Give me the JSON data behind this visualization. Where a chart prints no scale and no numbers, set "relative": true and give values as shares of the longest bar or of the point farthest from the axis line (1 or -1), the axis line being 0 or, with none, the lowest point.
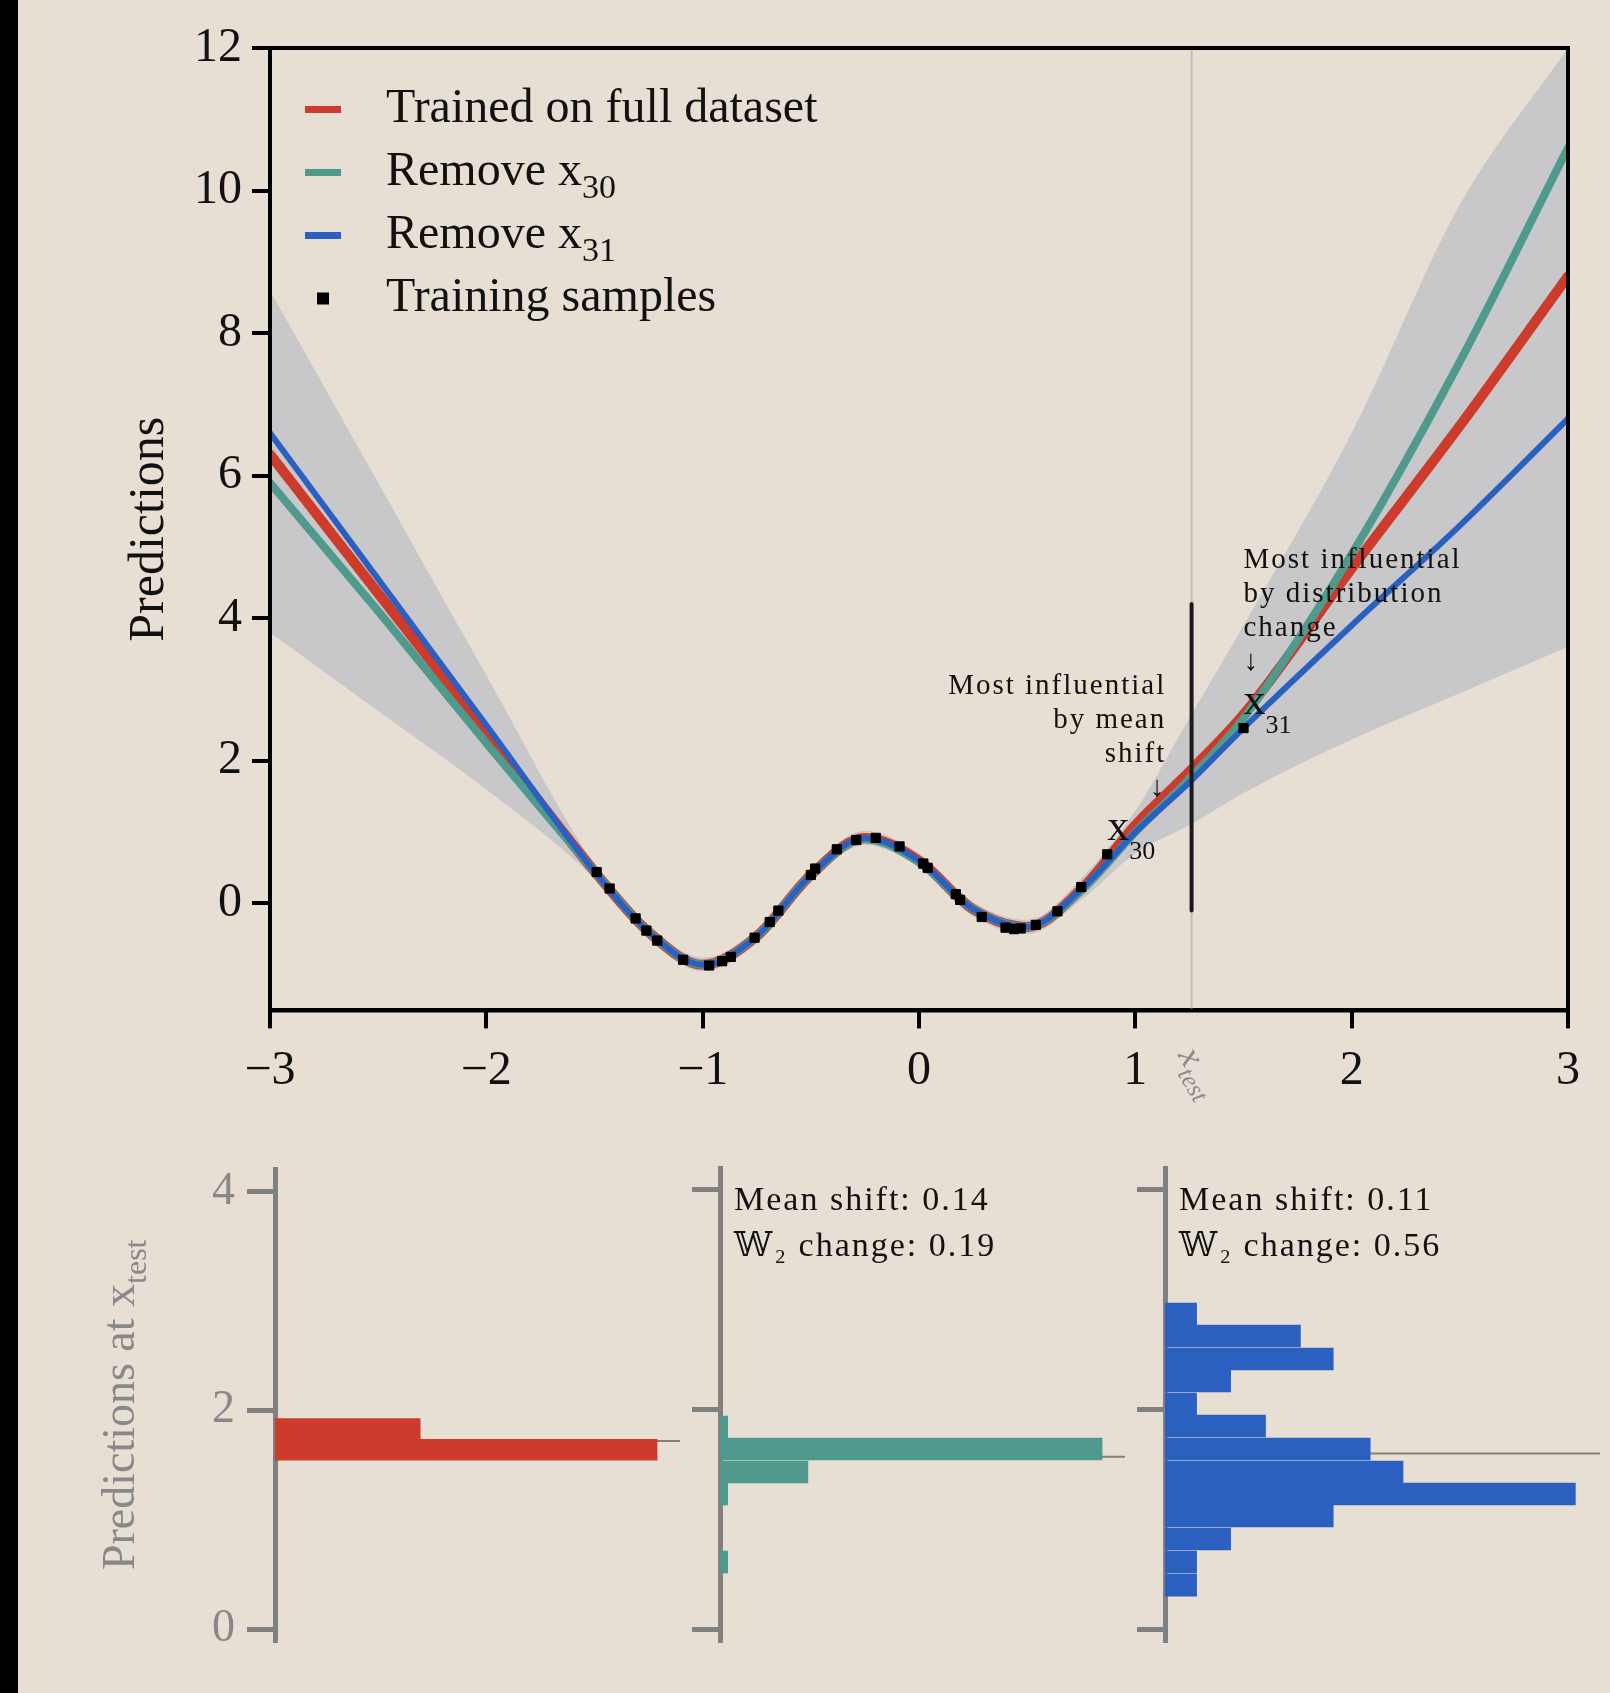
{
  "chart_data": [
    {
      "type": "line",
      "ylabel": "Predictions",
      "xlim": [
        -3,
        3
      ],
      "xticks": [
        -3,
        -2,
        -1,
        0,
        1,
        2,
        3
      ],
      "ylim": [
        -1.5,
        12
      ],
      "yticks": [
        0,
        2,
        4,
        6,
        8,
        10,
        12
      ],
      "legend": "top left",
      "grid": false,
      "series": [
        {
          "name": "Trained on full dataset",
          "color": "#cc3b2c",
          "x": [
            -3,
            -2.5,
            -2,
            -1.5,
            -1.25,
            -1,
            -0.75,
            -0.5,
            -0.25,
            0,
            0.25,
            0.5,
            0.75,
            1,
            1.25,
            1.5,
            2,
            2.5,
            3
          ],
          "values": [
            6.3,
            4.35,
            2.4,
            0.45,
            -0.4,
            -0.86,
            -0.46,
            0.4,
            0.92,
            0.6,
            -0.08,
            -0.33,
            0.2,
            1.1,
            1.85,
            2.65,
            4.7,
            6.7,
            8.8
          ]
        },
        {
          "name": "Remove x$_{30}$",
          "color": "#4f9a8c",
          "x": [
            -3,
            -2.5,
            -2,
            -1.5,
            -1.25,
            -1,
            -0.75,
            -0.5,
            -0.25,
            0,
            0.25,
            0.5,
            0.75,
            1,
            1.25,
            1.5,
            2,
            2.5,
            3
          ],
          "values": [
            5.9,
            4.1,
            2.25,
            0.45,
            -0.4,
            -0.86,
            -0.46,
            0.4,
            0.9,
            0.58,
            -0.08,
            -0.33,
            0.18,
            1.0,
            1.75,
            2.6,
            4.9,
            7.6,
            10.6
          ]
        },
        {
          "name": "Remove x$_{31}$",
          "color": "#2c60c0",
          "x": [
            -3,
            -2.5,
            -2,
            -1.5,
            -1.25,
            -1,
            -0.75,
            -0.5,
            -0.25,
            0,
            0.25,
            0.5,
            0.75,
            1,
            1.25,
            1.5,
            2,
            2.5,
            3
          ],
          "values": [
            6.6,
            4.55,
            2.5,
            0.45,
            -0.4,
            -0.86,
            -0.46,
            0.4,
            0.92,
            0.6,
            -0.08,
            -0.33,
            0.2,
            1.0,
            1.7,
            2.46,
            3.9,
            5.3,
            6.8
          ],
          "lower": [
            3.8,
            2.7,
            1.6,
            0.35,
            -0.5,
            -0.95,
            -0.56,
            0.3,
            0.82,
            0.5,
            -0.18,
            -0.43,
            0.05,
            0.7,
            1.1,
            1.55,
            2.3,
            2.95,
            3.6
          ],
          "upper": [
            8.6,
            5.9,
            3.2,
            0.55,
            -0.3,
            -0.76,
            -0.36,
            0.5,
            1.02,
            0.7,
            0.02,
            -0.23,
            0.35,
            1.3,
            2.6,
            3.9,
            6.6,
            9.8,
            12
          ]
        },
        {
          "name": "Training samples",
          "type": "scatter",
          "marker": "square",
          "color": "#000000",
          "x": [
            -1.49,
            -1.43,
            -1.31,
            -1.26,
            -1.21,
            -1.09,
            -0.97,
            -0.91,
            -0.87,
            -0.76,
            -0.69,
            -0.65,
            -0.5,
            -0.48,
            -0.38,
            -0.29,
            -0.2,
            -0.09,
            0.02,
            0.04,
            0.17,
            0.19,
            0.29,
            0.4,
            0.44,
            0.47,
            0.54,
            0.64,
            0.75,
            0.87,
            1.5
          ],
          "values": [
            0.44,
            0.21,
            -0.21,
            -0.38,
            -0.52,
            -0.79,
            -0.87,
            -0.81,
            -0.75,
            -0.48,
            -0.26,
            -0.1,
            0.4,
            0.49,
            0.76,
            0.89,
            0.92,
            0.8,
            0.56,
            0.5,
            0.13,
            0.05,
            -0.19,
            -0.34,
            -0.36,
            -0.35,
            -0.3,
            -0.11,
            0.23,
            0.69,
            2.46
          ]
        },
        {
          "type": "line",
          "color": "#1a1a1a",
          "x": [
            1.26,
            1.26
          ],
          "values": [
            -0.1,
            4.2
          ]
        }
      ],
      "ref_lines": [
        {
          "axis": "x",
          "value": 1.26,
          "label": "x$_{test}$",
          "color": "#c4beb6"
        }
      ],
      "annotations": [
        {
          "text": "Most influential\nby mean\nshift\n↓\nx$_{30}$",
          "x": 0.87,
          "y": 0.69
        },
        {
          "text": "Most influential\nby distribution\nchange\n↓\nx$_{31}$",
          "x": 1.5,
          "y": 2.46
        }
      ]
    },
    {
      "type": "bar",
      "orientation": "horizontal",
      "relative": true,
      "tick_labels": "y",
      "ylabel": "Predictions at x$_{test}$",
      "ylim": [
        -0.1,
        4.2
      ],
      "yticks": [
        0,
        2,
        4
      ],
      "color": "#cc3b2c",
      "x": [
        1.64,
        1.83
      ],
      "values": [
        1,
        0.38
      ],
      "ref_lines": [
        {
          "axis": "y",
          "value": 1.72,
          "color": "#808080"
        }
      ]
    },
    {
      "type": "bar",
      "orientation": "horizontal",
      "relative": true,
      "tick_labels": false,
      "ylim": [
        -0.1,
        4.2
      ],
      "yticks": [
        0,
        2,
        4
      ],
      "color": "#4f9a8c",
      "x": [
        0.61,
        1.23,
        1.43,
        1.64,
        1.84
      ],
      "values": [
        0.02,
        0.02,
        0.23,
        1,
        0.02
      ],
      "ref_lines": [
        {
          "axis": "y",
          "value": 1.57,
          "color": "#808080"
        }
      ],
      "annotations": [
        "Mean shift: 0.14\n𝕎₂ change: 0.19"
      ]
    },
    {
      "type": "bar",
      "orientation": "horizontal",
      "relative": true,
      "tick_labels": false,
      "ylim": [
        -0.1,
        4.2
      ],
      "yticks": [
        0,
        2,
        4
      ],
      "color": "#2c60c0",
      "x": [
        0.4,
        0.61,
        0.82,
        1.03,
        1.23,
        1.43,
        1.64,
        1.85,
        2.05,
        2.26,
        2.46,
        2.67,
        2.87
      ],
      "values": [
        0.077,
        0.077,
        0.16,
        0.41,
        1,
        0.58,
        0.5,
        0.245,
        0.077,
        0.16,
        0.41,
        0.33,
        0.077
      ],
      "ref_lines": [
        {
          "axis": "y",
          "value": 1.6,
          "color": "#808080"
        }
      ],
      "annotations": [
        "Mean shift: 0.11\n𝕎₂ change: 0.56"
      ]
    }
  ]
}
